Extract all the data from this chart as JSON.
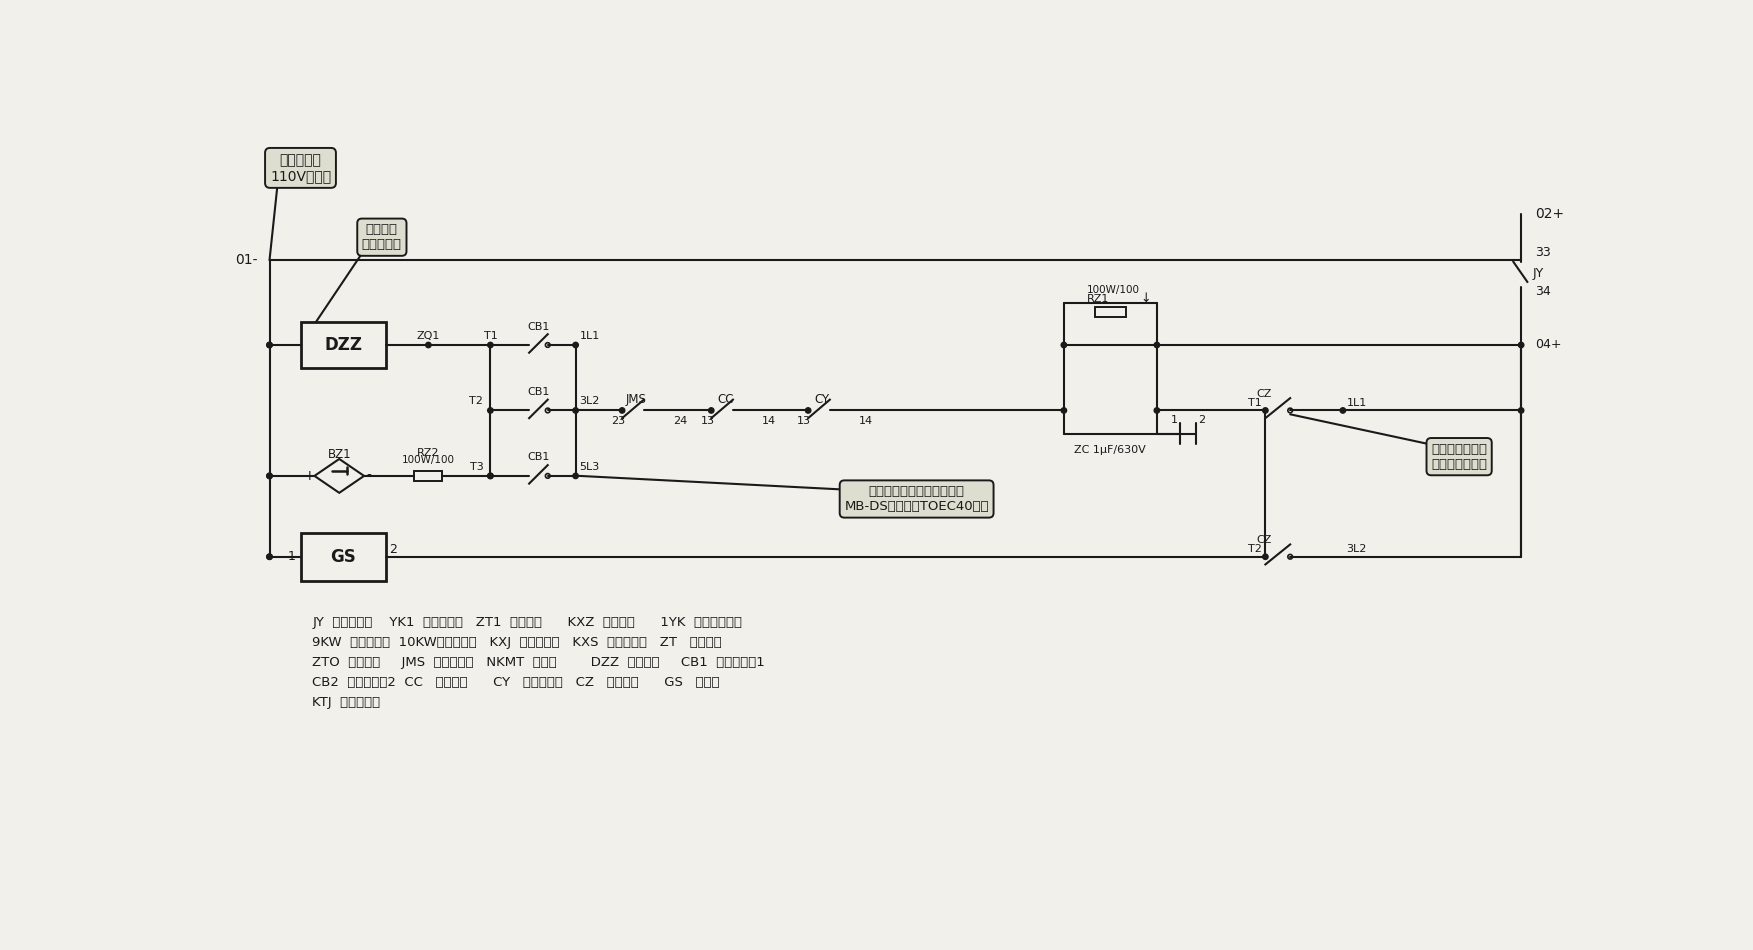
{
  "bg_color": "#f2f0eb",
  "line_color": "#1a1a1a",
  "fig_w": 17.53,
  "fig_h": 9.5,
  "dpi": 100,
  "callout1_text": "接控制电源\n110V的负极",
  "callout2_text": "抱闸线圈\n用方框表示",
  "callout3_text": "开闸瞬间吸合，\n闸开完全后断开",
  "callout4_text": "有的电梯没有开关，如迅达\nMB-DS，真的斯TOEC40等。",
  "legend_lines": [
    "JY  电压继电器    YK1  控制柜急停   ZT1  底坑急停      KXZ  断绳保护      1YK  基站钥匙开关",
    "9KW  上极限开关  10KW下极限开关   KXJ  安全钳开关   KXS  限速器开关   ZT   轿厢急停",
    "ZTO  轿顶急停     JMS  门锁继电器   NKMT  厅门锁        DZZ  抱闸线圈     CB1  抱闸接触器1",
    "CB2  抱闸接触器2  CC   主接触器      CY   辅助接触器   CZ   抱闸强激      GS   计数器",
    "KTJ  安全窗开关"
  ]
}
